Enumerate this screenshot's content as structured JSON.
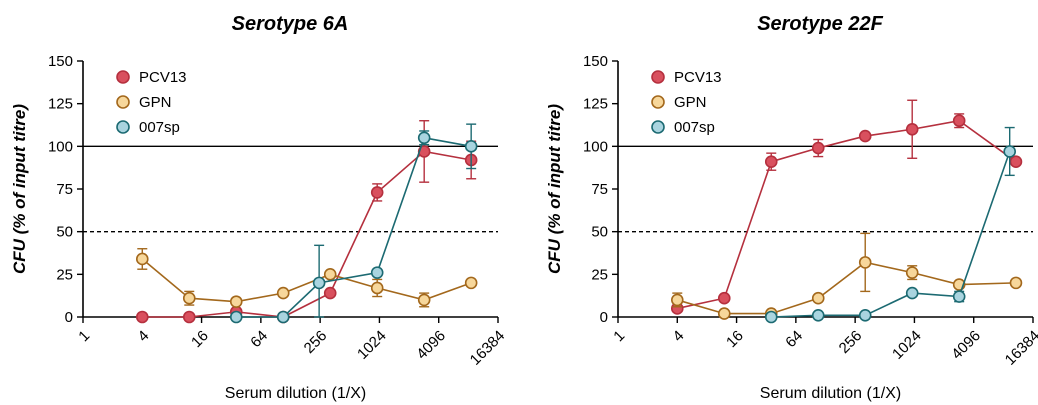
{
  "chart_data": [
    {
      "type": "line",
      "title": "Serotype 6A",
      "xlabel": "Serum dilution (1/X)",
      "ylabel": "CFU (% of input titre)",
      "x_scale": "log2",
      "xlim": [
        1,
        16384
      ],
      "x_ticks": [
        "1",
        "4",
        "16",
        "64",
        "256",
        "1024",
        "4096",
        "16384"
      ],
      "ylim": [
        0,
        150
      ],
      "y_ticks": [
        "0",
        "25",
        "50",
        "75",
        "100",
        "125",
        "150"
      ],
      "reference_lines": [
        {
          "y": 100,
          "style": "solid"
        },
        {
          "y": 50,
          "style": "dashed"
        }
      ],
      "legend_position": "top-left",
      "series": [
        {
          "name": "PCV13",
          "color": "#B5303E",
          "fill": "#D9505E",
          "points": [
            {
              "x": 4,
              "y": 0
            },
            {
              "x": 12,
              "y": 0
            },
            {
              "x": 36,
              "y": 3
            },
            {
              "x": 108,
              "y": 0
            },
            {
              "x": 324,
              "y": 14
            },
            {
              "x": 972,
              "y": 73,
              "err": 5
            },
            {
              "x": 2916,
              "y": 97,
              "err": 18
            },
            {
              "x": 8748,
              "y": 92,
              "err": 11
            }
          ]
        },
        {
          "name": "GPN",
          "color": "#A3681C",
          "fill": "#F7D79B",
          "points": [
            {
              "x": 4,
              "y": 34,
              "err": 6
            },
            {
              "x": 12,
              "y": 11,
              "err": 4
            },
            {
              "x": 36,
              "y": 9
            },
            {
              "x": 108,
              "y": 14
            },
            {
              "x": 324,
              "y": 25
            },
            {
              "x": 972,
              "y": 17,
              "err": 5
            },
            {
              "x": 2916,
              "y": 10,
              "err": 4
            },
            {
              "x": 8748,
              "y": 20
            }
          ]
        },
        {
          "name": "007sp",
          "color": "#1C6A72",
          "fill": "#A9D4DF",
          "points": [
            {
              "x": 36,
              "y": 0
            },
            {
              "x": 108,
              "y": 0
            },
            {
              "x": 250,
              "y": 20,
              "err": 22
            },
            {
              "x": 972,
              "y": 26
            },
            {
              "x": 2916,
              "y": 105,
              "err": 4
            },
            {
              "x": 8748,
              "y": 100,
              "err": 13
            }
          ]
        }
      ]
    },
    {
      "type": "line",
      "title": "Serotype 22F",
      "xlabel": "Serum dilution (1/X)",
      "ylabel": "CFU (% of input titre)",
      "x_scale": "log2",
      "xlim": [
        1,
        16384
      ],
      "x_ticks": [
        "1",
        "4",
        "16",
        "64",
        "256",
        "1024",
        "4096",
        "16384"
      ],
      "ylim": [
        0,
        150
      ],
      "y_ticks": [
        "0",
        "25",
        "50",
        "75",
        "100",
        "125",
        "150"
      ],
      "reference_lines": [
        {
          "y": 100,
          "style": "solid"
        },
        {
          "y": 50,
          "style": "dashed"
        }
      ],
      "legend_position": "top-left",
      "series": [
        {
          "name": "PCV13",
          "color": "#B5303E",
          "fill": "#D9505E",
          "points": [
            {
              "x": 4,
              "y": 5
            },
            {
              "x": 12,
              "y": 11
            },
            {
              "x": 36,
              "y": 91,
              "err": 5
            },
            {
              "x": 108,
              "y": 99,
              "err": 5
            },
            {
              "x": 324,
              "y": 106
            },
            {
              "x": 972,
              "y": 110,
              "err": 17
            },
            {
              "x": 2916,
              "y": 115,
              "err": 4
            },
            {
              "x": 11000,
              "y": 91
            }
          ]
        },
        {
          "name": "GPN",
          "color": "#A3681C",
          "fill": "#F7D79B",
          "points": [
            {
              "x": 4,
              "y": 10,
              "err": 4
            },
            {
              "x": 12,
              "y": 2
            },
            {
              "x": 36,
              "y": 2
            },
            {
              "x": 108,
              "y": 11
            },
            {
              "x": 324,
              "y": 32,
              "err": 17
            },
            {
              "x": 972,
              "y": 26,
              "err": 4
            },
            {
              "x": 2916,
              "y": 19
            },
            {
              "x": 11000,
              "y": 20
            }
          ]
        },
        {
          "name": "007sp",
          "color": "#1C6A72",
          "fill": "#A9D4DF",
          "points": [
            {
              "x": 36,
              "y": 0
            },
            {
              "x": 108,
              "y": 1
            },
            {
              "x": 324,
              "y": 1
            },
            {
              "x": 972,
              "y": 14
            },
            {
              "x": 2916,
              "y": 12,
              "err": 3
            },
            {
              "x": 9500,
              "y": 97,
              "err": 14
            }
          ]
        }
      ]
    }
  ]
}
